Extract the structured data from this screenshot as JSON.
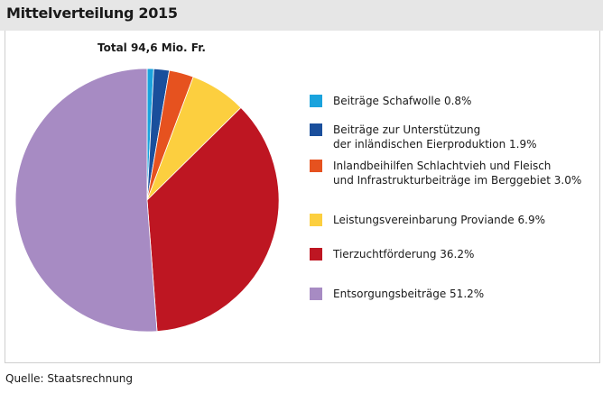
{
  "title": "Mittelverteilung 2015",
  "total_label": "Total 94,6 Mio. Fr.",
  "source": "Quelle: Staatsrechnung",
  "chart_data": {
    "type": "pie",
    "title": "Mittelverteilung 2015",
    "unit": "%",
    "legend_position": "right",
    "slices": [
      {
        "label": "Beiträge Schafwolle 0.8%",
        "value": 0.8,
        "color": "#1aa3dd"
      },
      {
        "label": "Beiträge zur Unterstützung\nder inländischen Eierproduktion 1.9%",
        "value": 1.9,
        "color": "#1a4f9c"
      },
      {
        "label": "Inlandbeihilfen Schlachtvieh und Fleisch\nund Infrastrukturbeiträge im Berggebiet 3.0%",
        "value": 3.0,
        "color": "#e6521f"
      },
      {
        "label": "Leistungsvereinbarung Proviande 6.9%",
        "value": 6.9,
        "color": "#fccf3f"
      },
      {
        "label": "Tierzuchtförderung 36.2%",
        "value": 36.2,
        "color": "#be1622"
      },
      {
        "label": "Entsorgungsbeiträge 51.2%",
        "value": 51.2,
        "color": "#a78bc3"
      }
    ]
  }
}
